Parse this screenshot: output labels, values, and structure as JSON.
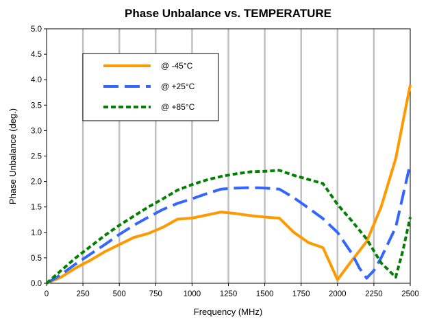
{
  "chart_data": {
    "type": "line",
    "title": "Phase Unbalance vs. TEMPERATURE",
    "xlabel": "Frequency (MHz)",
    "ylabel": "Phase Unbalance (deg.)",
    "xlim": [
      0,
      2500
    ],
    "ylim": [
      0,
      5
    ],
    "xticks": [
      0,
      250,
      500,
      750,
      1000,
      1250,
      1500,
      1750,
      2000,
      2250,
      2500
    ],
    "yticks": [
      0,
      0.5,
      1,
      1.5,
      2,
      2.5,
      3,
      3.5,
      4,
      4.5,
      5
    ],
    "ytick_labels": [
      "0.0",
      "0.5",
      "1.0",
      "1.5",
      "2.0",
      "2.5",
      "3.0",
      "3.5",
      "4.0",
      "4.5",
      "5.0"
    ],
    "grid": "vertical",
    "legend_position": "top-left",
    "series": [
      {
        "name": "@ -45°C",
        "color": "#FF9900",
        "style": "solid",
        "x": [
          0,
          100,
          200,
          300,
          400,
          500,
          600,
          700,
          800,
          900,
          1000,
          1100,
          1200,
          1300,
          1400,
          1500,
          1600,
          1700,
          1800,
          1900,
          2000,
          2100,
          2200,
          2300,
          2400,
          2500
        ],
        "y": [
          0,
          0.12,
          0.3,
          0.45,
          0.62,
          0.76,
          0.9,
          0.98,
          1.1,
          1.26,
          1.28,
          1.34,
          1.4,
          1.37,
          1.33,
          1.3,
          1.28,
          1.0,
          0.8,
          0.7,
          0.07,
          0.45,
          0.82,
          1.5,
          2.45,
          3.9
        ]
      },
      {
        "name": "@ +25°C",
        "color": "#3366FF",
        "style": "dash",
        "x": [
          0,
          100,
          200,
          300,
          400,
          500,
          600,
          700,
          800,
          900,
          1000,
          1100,
          1200,
          1300,
          1400,
          1500,
          1600,
          1700,
          1800,
          1900,
          2000,
          2100,
          2150,
          2200,
          2250,
          2300,
          2400,
          2500
        ],
        "y": [
          0,
          0.17,
          0.38,
          0.57,
          0.76,
          0.96,
          1.14,
          1.3,
          1.45,
          1.57,
          1.66,
          1.76,
          1.85,
          1.87,
          1.88,
          1.87,
          1.85,
          1.68,
          1.48,
          1.27,
          1.0,
          0.58,
          0.3,
          0.1,
          0.25,
          0.5,
          1.1,
          2.35
        ]
      },
      {
        "name": "@ +85°C",
        "color": "#008000",
        "style": "dot",
        "x": [
          0,
          100,
          200,
          300,
          400,
          500,
          600,
          700,
          800,
          900,
          1000,
          1100,
          1200,
          1300,
          1400,
          1500,
          1600,
          1700,
          1800,
          1900,
          2000,
          2100,
          2200,
          2300,
          2400,
          2450,
          2500
        ],
        "y": [
          0,
          0.25,
          0.5,
          0.72,
          0.94,
          1.14,
          1.32,
          1.5,
          1.66,
          1.83,
          1.94,
          2.03,
          2.1,
          2.15,
          2.19,
          2.2,
          2.22,
          2.12,
          2.04,
          1.96,
          1.55,
          1.22,
          0.87,
          0.4,
          0.12,
          0.65,
          1.3
        ]
      }
    ]
  }
}
